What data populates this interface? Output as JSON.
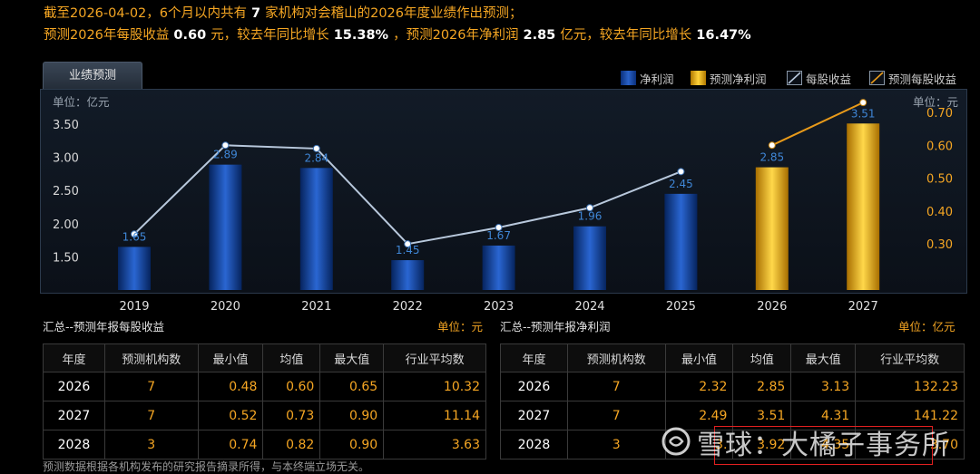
{
  "header": {
    "line1_prefix": "截至2026-04-02，6个月以内共有",
    "line1_count": "7",
    "line1_suffix": "家机构对会稽山的2026年度业绩作出预测；",
    "line2_eps_label": "预测2026年每股收益",
    "line2_eps_value": "0.60",
    "line2_eps_unit": "元，较去年同比增长",
    "line2_eps_growth": "15.38%",
    "line2_np_label": "，预测2026年净利润",
    "line2_np_value": "2.85",
    "line2_np_unit": "亿元，较去年同比增长",
    "line2_np_growth": "16.47%"
  },
  "tab_label": "业绩预测",
  "legend": {
    "net_profit": "净利润",
    "forecast_net_profit": "预测净利润",
    "eps": "每股收益",
    "forecast_eps": "预测每股收益"
  },
  "colors": {
    "actual_bar": "#1e50b4",
    "forecast_bar": "#f2b20c",
    "eps_line": "#b8c8dc",
    "forecast_eps_line": "#e89a1a",
    "accent": "#f5a623"
  },
  "chart_data": {
    "type": "bar",
    "left_unit": "单位：亿元",
    "right_unit": "单位：元",
    "categories": [
      "2019",
      "2020",
      "2021",
      "2022",
      "2023",
      "2024",
      "2025",
      "2026",
      "2027"
    ],
    "y_left_ticks": [
      "3.50",
      "3.00",
      "2.50",
      "2.00",
      "1.50"
    ],
    "y_left_range": [
      1.0,
      3.5
    ],
    "y_right_ticks": [
      "0.70",
      "0.60",
      "0.50",
      "0.40",
      "0.30"
    ],
    "y_right_range": [
      0.16,
      0.7
    ],
    "series": [
      {
        "name": "净利润",
        "values": [
          1.65,
          2.89,
          2.84,
          1.45,
          1.67,
          1.96,
          2.45,
          null,
          null
        ]
      },
      {
        "name": "预测净利润",
        "values": [
          null,
          null,
          null,
          null,
          null,
          null,
          null,
          2.85,
          3.51
        ]
      },
      {
        "name": "每股收益",
        "values": [
          0.33,
          0.6,
          0.59,
          0.3,
          0.35,
          0.41,
          0.52,
          null,
          null
        ]
      },
      {
        "name": "预测每股收益",
        "values": [
          null,
          null,
          null,
          null,
          null,
          null,
          null,
          0.6,
          0.73
        ]
      }
    ],
    "data_labels": [
      "1.65",
      "2.89",
      "2.84",
      "1.45",
      "1.67",
      "1.96",
      "2.45",
      "2.85",
      "3.51"
    ],
    "grid": false,
    "legend_position": "top-right"
  },
  "eps_table": {
    "title": "汇总--预测年报每股收益",
    "unit": "单位：元",
    "headers": [
      "年度",
      "预测机构数",
      "最小值",
      "均值",
      "最大值",
      "行业平均数"
    ],
    "rows": [
      [
        "2026",
        "7",
        "0.48",
        "0.60",
        "0.65",
        "10.32"
      ],
      [
        "2027",
        "7",
        "0.52",
        "0.73",
        "0.90",
        "11.14"
      ],
      [
        "2028",
        "3",
        "0.74",
        "0.82",
        "0.90",
        "3.63"
      ]
    ]
  },
  "np_table": {
    "title": "汇总--预测年报净利润",
    "unit": "单位：亿元",
    "headers": [
      "年度",
      "预测机构数",
      "最小值",
      "均值",
      "最大值",
      "行业平均数"
    ],
    "rows": [
      [
        "2026",
        "7",
        "2.32",
        "2.85",
        "3.13",
        "132.23"
      ],
      [
        "2027",
        "7",
        "2.49",
        "3.51",
        "4.31",
        "141.22"
      ],
      [
        "2028",
        "3",
        "3.",
        "3.92",
        "4.35",
        "3.70"
      ]
    ]
  },
  "footer": "预测数据根据各机构发布的研究报告摘录所得，与本终端立场无关。",
  "watermark": "雪球：大橘子事务所"
}
